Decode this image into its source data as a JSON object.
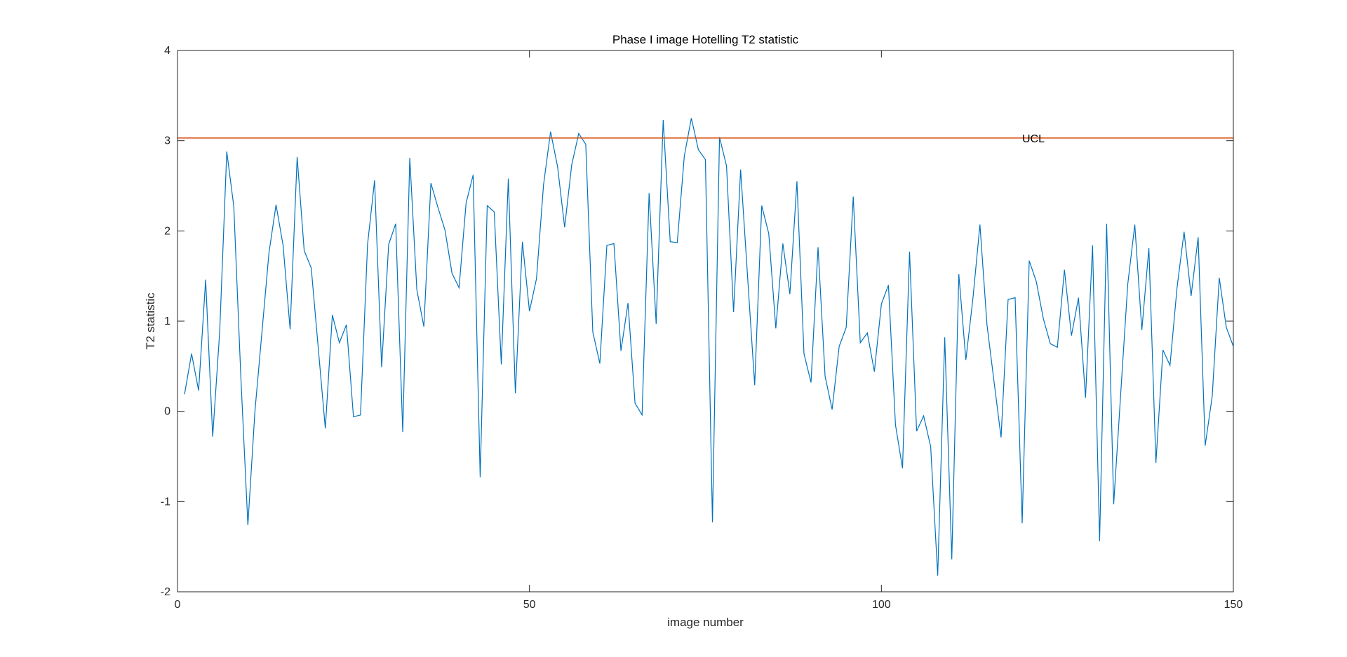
{
  "chart_data": {
    "type": "line",
    "title": "Phase I image Hotelling T2 statistic",
    "xlabel": "image number",
    "ylabel": "T2 statistic",
    "xlim": [
      0,
      150
    ],
    "ylim": [
      -2,
      4
    ],
    "xticks": [
      0,
      50,
      100,
      150
    ],
    "yticks": [
      -2,
      -1,
      0,
      1,
      2,
      3,
      4
    ],
    "grid": false,
    "colors": {
      "series": "#0072BD",
      "ucl": "#D95319",
      "axes": "#262626"
    },
    "series": [
      {
        "x": [
          1,
          2,
          3,
          4,
          5,
          6,
          7,
          8,
          9,
          10,
          11,
          12,
          13,
          14,
          15,
          16,
          17,
          18,
          19,
          20,
          21,
          22,
          23,
          24,
          25,
          26,
          27,
          28,
          29,
          30,
          31,
          32,
          33,
          34,
          35,
          36,
          37,
          38,
          39,
          40,
          41,
          42,
          43,
          44,
          45,
          46,
          47,
          48,
          49,
          50,
          51,
          52,
          53,
          54,
          55,
          56,
          57,
          58,
          59,
          60,
          61,
          62,
          63,
          64,
          65,
          66,
          67,
          68,
          69,
          70,
          71,
          72,
          73,
          74,
          75,
          76,
          77,
          78,
          79,
          80,
          81,
          82,
          83,
          84,
          85,
          86,
          87,
          88,
          89,
          90,
          91,
          92,
          93,
          94,
          95,
          96,
          97,
          98,
          99,
          100,
          101,
          102,
          103,
          104,
          105,
          106,
          107,
          108,
          109,
          110,
          111,
          112,
          113,
          114,
          115,
          116,
          117,
          118,
          119,
          120,
          121,
          122,
          123,
          124,
          125,
          126,
          127,
          128,
          129,
          130,
          131,
          132,
          133,
          134,
          135,
          136,
          137,
          138,
          139,
          140,
          141,
          142,
          143,
          144,
          145,
          146,
          147,
          148,
          149,
          150
        ],
        "values": [
          0.19,
          0.64,
          0.23,
          1.46,
          -0.28,
          0.89,
          2.88,
          2.27,
          0.38,
          -1.26,
          0.0,
          0.88,
          1.76,
          2.29,
          1.84,
          0.91,
          2.82,
          1.78,
          1.59,
          0.7,
          -0.19,
          1.07,
          0.76,
          0.96,
          -0.06,
          -0.04,
          1.85,
          2.56,
          0.49,
          1.85,
          2.08,
          -0.23,
          2.81,
          1.35,
          0.94,
          2.53,
          2.26,
          2.01,
          1.53,
          1.37,
          2.31,
          2.62,
          -0.73,
          2.28,
          2.21,
          0.52,
          2.58,
          0.2,
          1.88,
          1.11,
          1.47,
          2.51,
          3.1,
          2.71,
          2.04,
          2.73,
          3.08,
          2.96,
          0.88,
          0.53,
          1.84,
          1.86,
          0.67,
          1.2,
          0.09,
          -0.04,
          2.42,
          0.97,
          3.23,
          1.88,
          1.87,
          2.83,
          3.25,
          2.9,
          2.79,
          -1.23,
          3.04,
          2.72,
          1.1,
          2.68,
          1.48,
          0.29,
          2.28,
          1.97,
          0.92,
          1.86,
          1.3,
          2.55,
          0.64,
          0.32,
          1.82,
          0.39,
          0.02,
          0.72,
          0.93,
          2.38,
          0.76,
          0.87,
          0.44,
          1.19,
          1.4,
          -0.15,
          -0.63,
          1.77,
          -0.22,
          -0.05,
          -0.39,
          -1.82,
          0.82,
          -1.64,
          1.52,
          0.57,
          1.25,
          2.07,
          0.96,
          0.33,
          -0.29,
          1.24,
          1.26,
          -1.24,
          1.67,
          1.44,
          1.03,
          0.75,
          0.71,
          1.57,
          0.84,
          1.26,
          0.15,
          1.84,
          -1.44,
          2.08,
          -1.03,
          0.2,
          1.41,
          2.07,
          0.9,
          1.81,
          -0.57,
          0.68,
          0.51,
          1.37,
          1.99,
          1.28,
          1.93,
          -0.38,
          0.17,
          1.48,
          0.93,
          0.72
        ]
      }
    ],
    "reference_line": {
      "label": "UCL",
      "y": 3.03,
      "label_x": 120
    }
  }
}
